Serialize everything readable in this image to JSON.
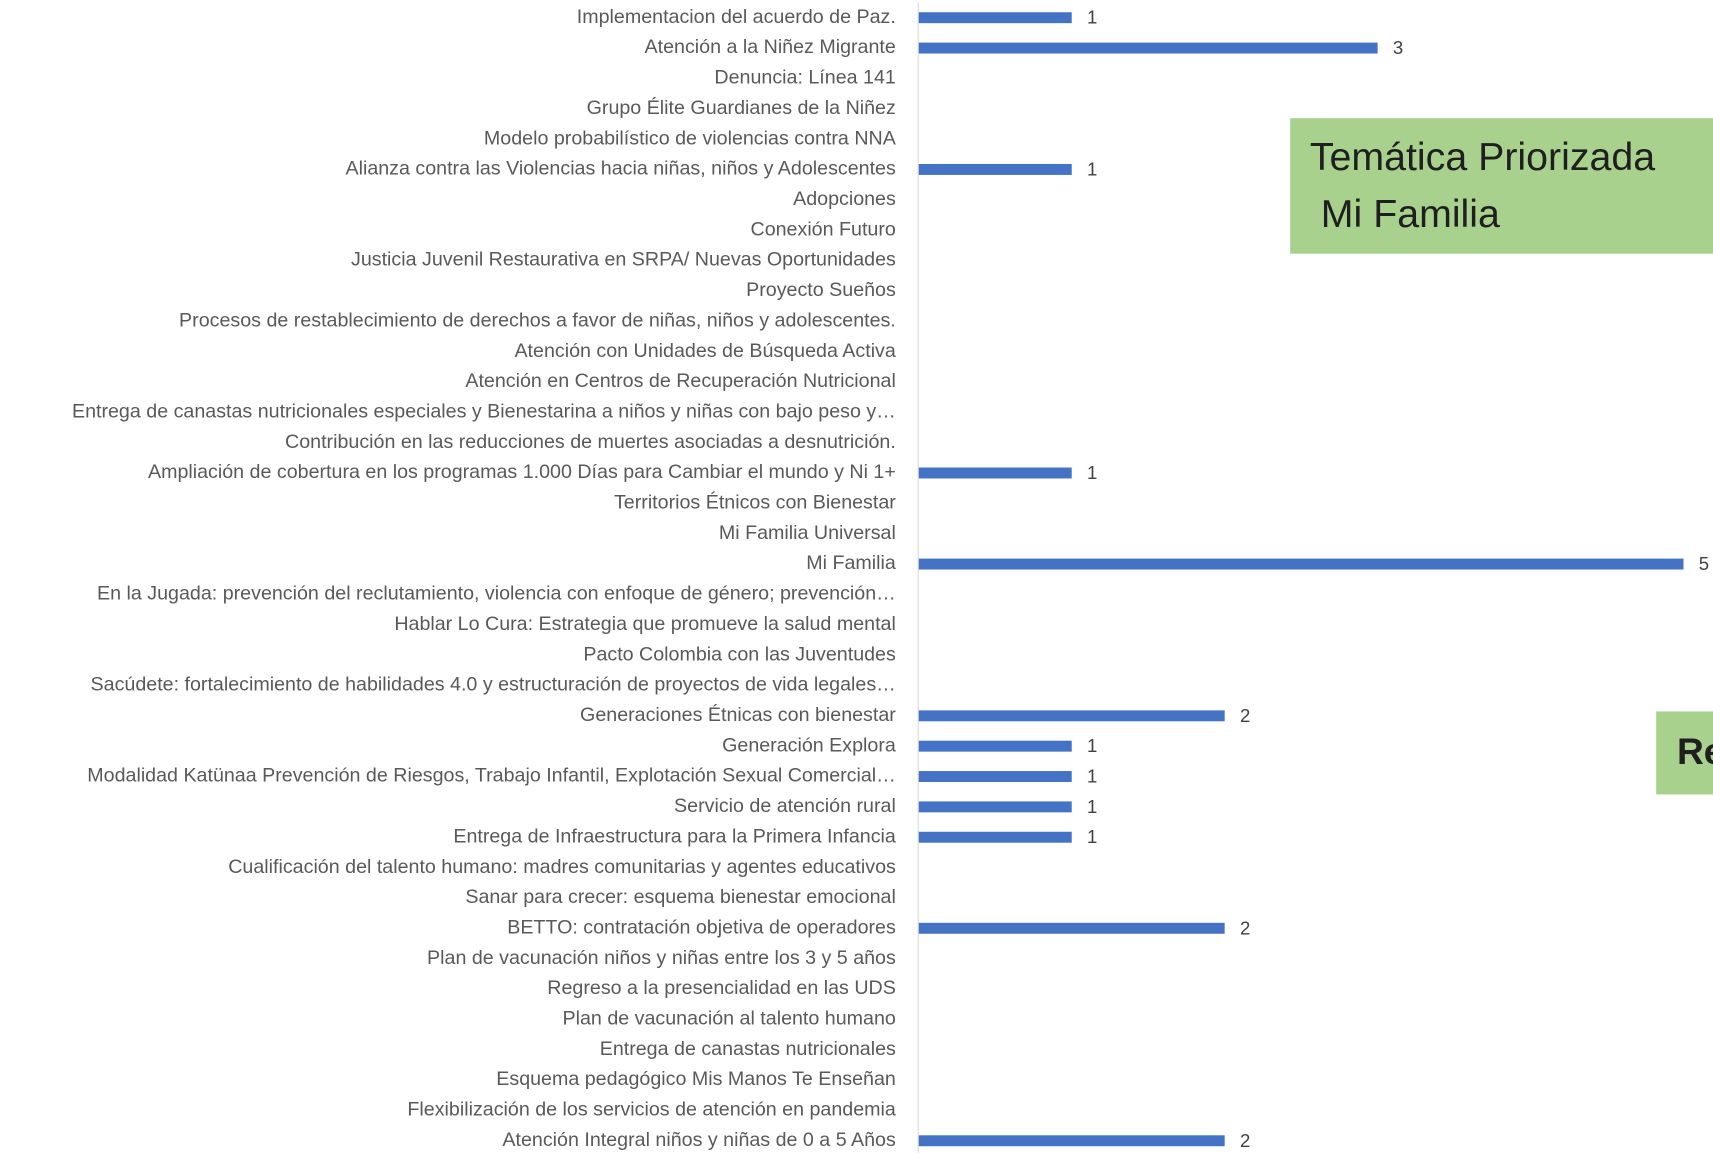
{
  "chart_data": {
    "type": "bar",
    "orientation": "horizontal",
    "color": "#4472c4",
    "xlim": [
      0,
      5
    ],
    "categories": [
      "Implementacion del acuerdo de Paz.",
      "Atención a la Niñez Migrante",
      "Denuncia: Línea 141",
      "Grupo Élite Guardianes de la Niñez",
      "Modelo probabilístico de violencias contra NNA",
      "Alianza contra las Violencias hacia niñas, niños y Adolescentes",
      "Adopciones",
      "Conexión Futuro",
      "Justicia Juvenil Restaurativa en SRPA/ Nuevas Oportunidades",
      "Proyecto Sueños",
      "Procesos de restablecimiento de derechos a favor de niñas, niños y adolescentes.",
      "Atención con Unidades de Búsqueda Activa",
      "Atención en Centros de Recuperación Nutricional",
      "Entrega de canastas nutricionales especiales y Bienestarina a niños y niñas con bajo peso y…",
      "Contribución en las reducciones de muertes asociadas a desnutrición.",
      "Ampliación de cobertura en los programas 1.000 Días para Cambiar el mundo y Ni 1+",
      "Territorios Étnicos con Bienestar",
      "Mi Familia Universal",
      "Mi Familia",
      "En la Jugada: prevención del reclutamiento, violencia con enfoque de género; prevención…",
      "Hablar Lo Cura: Estrategia que promueve la salud mental",
      "Pacto Colombia con las Juventudes",
      "Sacúdete: fortalecimiento de habilidades 4.0 y estructuración de proyectos de vida legales…",
      "Generaciones Étnicas con bienestar",
      "Generación Explora",
      "Modalidad Katünaa  Prevención de Riesgos, Trabajo Infantil, Explotación Sexual Comercial…",
      "Servicio de atención rural",
      "Entrega de Infraestructura para la Primera Infancia",
      "Cualificación del talento humano: madres comunitarias y agentes educativos",
      "Sanar para crecer: esquema bienestar emocional",
      "BETTO: contratación objetiva de operadores",
      "Plan de vacunación niños y niñas entre los 3 y 5 años",
      "Regreso a la presencialidad en las UDS",
      "Plan de vacunación al talento humano",
      "Entrega de canastas nutricionales",
      "Esquema pedagógico Mis Manos Te Enseñan",
      "Flexibilización de los servicios de atención en pandemia",
      "Atención Integral niños y niñas de 0 a 5 Años"
    ],
    "values": [
      1,
      3,
      null,
      null,
      null,
      1,
      null,
      null,
      null,
      null,
      null,
      null,
      null,
      null,
      null,
      1,
      null,
      null,
      5,
      null,
      null,
      null,
      null,
      2,
      1,
      1,
      1,
      1,
      null,
      null,
      2,
      null,
      null,
      null,
      null,
      null,
      null,
      2
    ],
    "annotations": [
      {
        "lines": [
          "Temática Priorizada",
          " Mi Familia"
        ],
        "color": "#a9d18e"
      },
      {
        "lines": [
          "Re"
        ],
        "color": "#a9d18e"
      }
    ]
  }
}
